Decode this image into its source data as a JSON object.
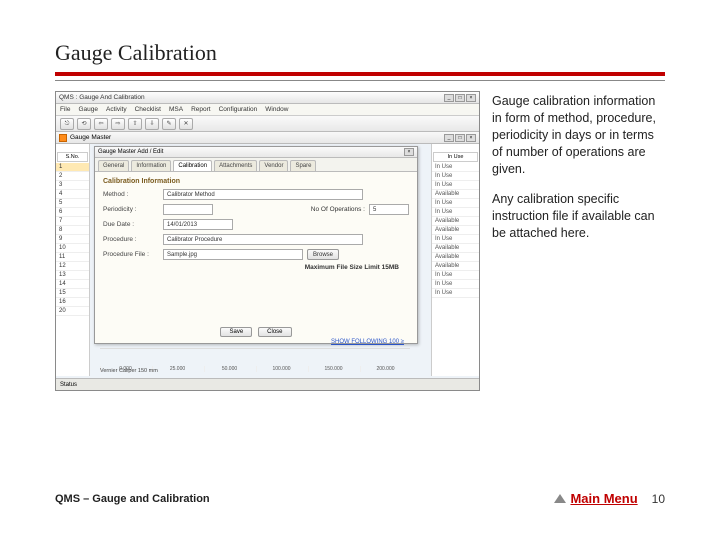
{
  "slide": {
    "title": "Gauge Calibration",
    "paragraph1": "Gauge calibration information in form of method, procedure, periodicity in days or in terms of number of operations are given.",
    "paragraph2": "Any calibration specific instruction file if available can be attached here.",
    "footer_left": "QMS – Gauge and Calibration",
    "main_menu": "Main Menu",
    "page_number": "10",
    "colors": {
      "accent": "#c00000",
      "background": "#ffffff"
    }
  },
  "app": {
    "window_title": "QMS : Gauge And Calibration",
    "menus": [
      "File",
      "Gauge",
      "Activity",
      "Checklist",
      "MSA",
      "Report",
      "Configuration",
      "Window"
    ],
    "toolbar_icons": [
      "⎋",
      "⟲",
      "⇦",
      "⇨",
      "⇧",
      "⇩",
      "✎",
      "✕"
    ],
    "inner_window_title": "Gauge Master",
    "right_column_header": "In Use",
    "right_cells": [
      "In Use",
      "In Use",
      "In Use",
      "Available",
      "In Use",
      "In Use",
      "Available",
      "Available",
      "In Use",
      "Available",
      "Available",
      "Available",
      "In Use",
      "In Use",
      "In Use"
    ],
    "sn_header": "S.No.",
    "sn_rows": [
      "1",
      "2",
      "3",
      "4",
      "5",
      "6",
      "7",
      "8",
      "9",
      "10",
      "11",
      "12",
      "13",
      "14",
      "15",
      "16",
      "20"
    ],
    "status_bar": "Status",
    "chart": {
      "link_text": "SHOW FOLLOWING 100 ≥",
      "caption": "Vernier Caliper 150 mm",
      "ticks": [
        "0.000",
        "25.000",
        "50.000",
        "100.000",
        "150.000",
        "200.000"
      ]
    }
  },
  "dialog": {
    "title": "Gauge Master Add / Edit",
    "tabs": [
      "General",
      "Information",
      "Calibration",
      "Attachments",
      "Vendor",
      "Spare"
    ],
    "active_tab_index": 2,
    "section_title": "Calibration Information",
    "method_label": "Method :",
    "method_value": "Calibrator Method",
    "periodicity_label": "Periodicity :",
    "noops_label": "No Of Operations :",
    "noops_value": "5",
    "duedate_label": "Due Date :",
    "duedate_value": "14/01/2013",
    "procedure_label": "Procedure :",
    "procedure_value": "Calibrator Procedure",
    "procfile_label": "Procedure File :",
    "procfile_value": "Sample.jpg",
    "browse": "Browse",
    "max_size": "Maximum File Size Limit 15MB",
    "save": "Save",
    "close": "Close"
  }
}
